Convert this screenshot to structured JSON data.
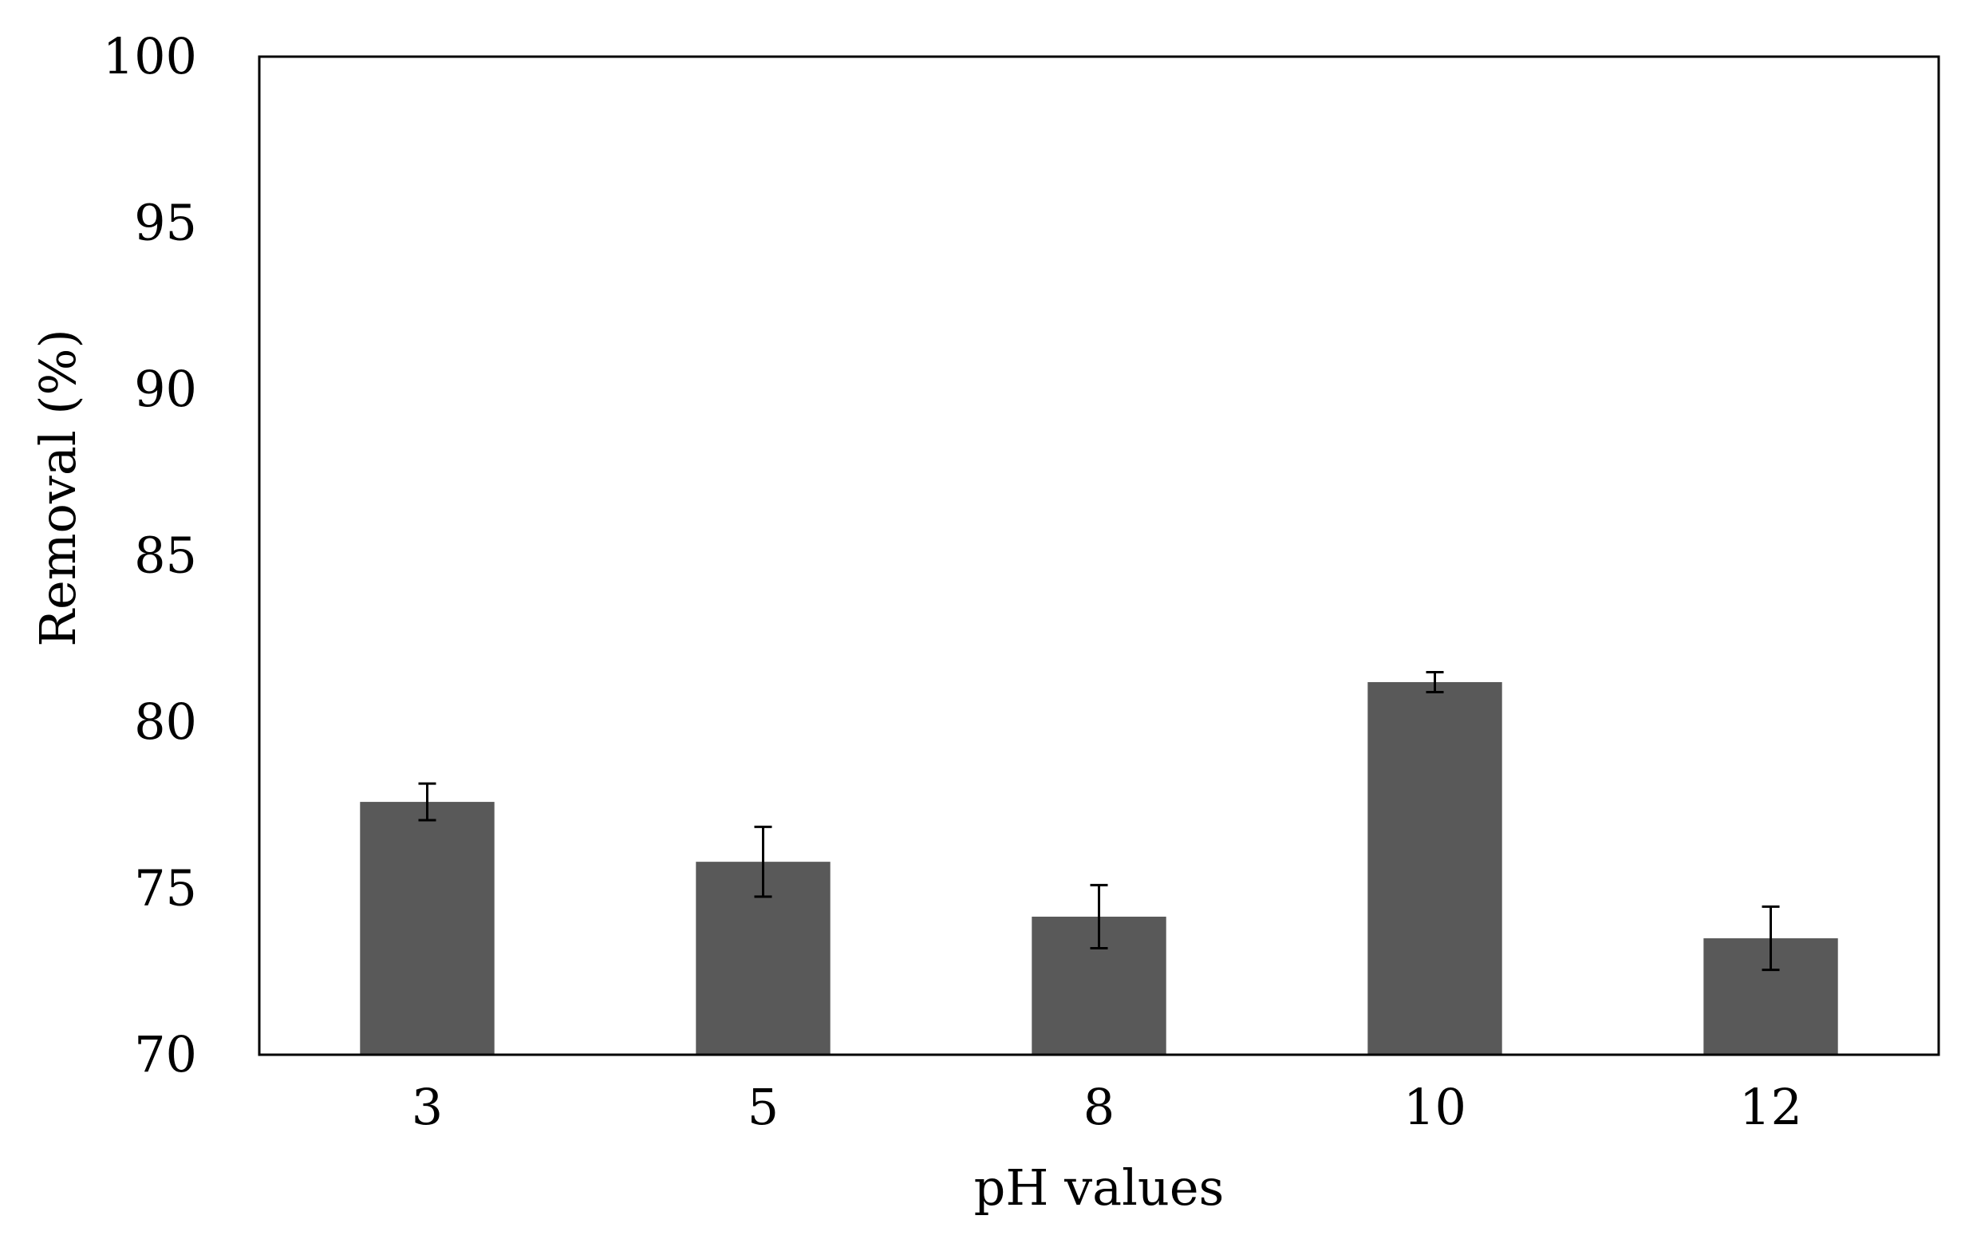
{
  "chart_data": {
    "type": "bar",
    "title": "",
    "xlabel": "pH values",
    "ylabel": "Removal (%)",
    "categories": [
      "3",
      "5",
      "8",
      "10",
      "12"
    ],
    "values": [
      77.6,
      75.8,
      74.15,
      81.2,
      73.5
    ],
    "errors": [
      0.55,
      1.05,
      0.95,
      0.3,
      0.95
    ],
    "ylim": [
      70,
      100
    ],
    "yticks": [
      "70",
      "75",
      "80",
      "85",
      "90",
      "95",
      "100"
    ],
    "grid": false,
    "legend": "none",
    "bar_color": "#595959",
    "error_bar_color": "#000000",
    "frame_color": "#000000"
  }
}
